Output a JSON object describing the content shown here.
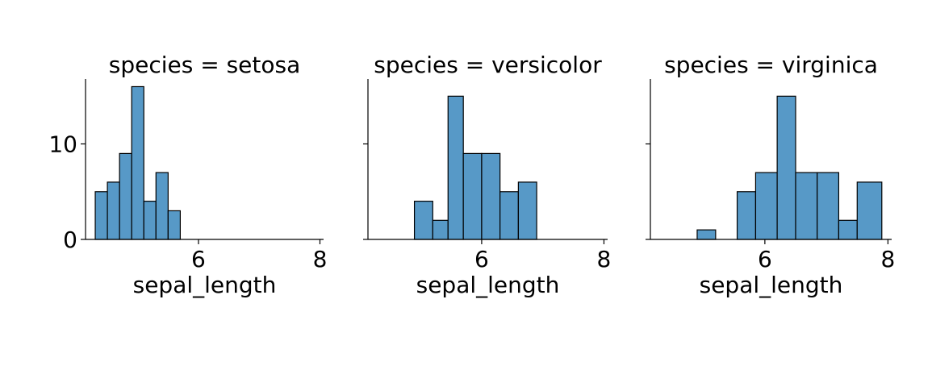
{
  "chart_data": [
    {
      "type": "bar",
      "title": "species = setosa",
      "xlabel": "sepal_length",
      "ylabel": "",
      "bin_edges": [
        4.3,
        4.5,
        4.7,
        4.9,
        5.1,
        5.3,
        5.5,
        5.7
      ],
      "values": [
        5,
        6,
        9,
        16,
        4,
        7,
        3
      ],
      "xlim": [
        4.14,
        8.06
      ],
      "ylim": [
        0,
        16.8
      ],
      "xticks": [
        6,
        8
      ],
      "yticks": [
        0,
        10
      ],
      "show_y_tick_labels": true
    },
    {
      "type": "bar",
      "title": "species = versicolor",
      "xlabel": "sepal_length",
      "ylabel": "",
      "bin_edges": [
        4.9,
        5.2,
        5.45,
        5.7,
        6.0,
        6.3,
        6.6,
        6.9
      ],
      "values": [
        4,
        2,
        15,
        9,
        9,
        5,
        6
      ],
      "xlim": [
        4.14,
        8.06
      ],
      "ylim": [
        0,
        16.8
      ],
      "xticks": [
        6,
        8
      ],
      "yticks": [
        0,
        10
      ],
      "show_y_tick_labels": false
    },
    {
      "type": "bar",
      "title": "species = virginica",
      "xlabel": "sepal_length",
      "ylabel": "",
      "bin_edges": [
        4.9,
        5.2,
        5.55,
        5.85,
        6.2,
        6.5,
        6.85,
        7.2,
        7.5,
        7.9
      ],
      "values": [
        1,
        0,
        5,
        7,
        15,
        7,
        7,
        2,
        6
      ],
      "xlim": [
        4.14,
        8.06
      ],
      "ylim": [
        0,
        16.8
      ],
      "xticks": [
        6,
        8
      ],
      "yticks": [
        0,
        10
      ],
      "show_y_tick_labels": false
    }
  ],
  "style": {
    "bar_fill": "#5799c7",
    "bar_edge": "#000000",
    "axis_color": "#000000",
    "background": "#ffffff"
  }
}
